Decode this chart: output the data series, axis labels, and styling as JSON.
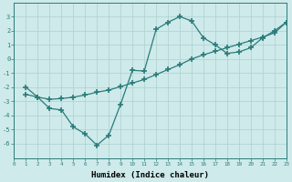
{
  "x": [
    1,
    2,
    3,
    4,
    5,
    6,
    7,
    8,
    9,
    10,
    11,
    12,
    13,
    14,
    15,
    16,
    17,
    18,
    19,
    20,
    21,
    22,
    23
  ],
  "y_wavy": [
    -2.0,
    -2.7,
    -3.5,
    -3.6,
    -4.8,
    -5.3,
    -6.1,
    -5.4,
    -3.2,
    -0.8,
    -0.85,
    2.1,
    2.6,
    3.0,
    2.7,
    1.5,
    1.0,
    0.4,
    0.5,
    0.8,
    1.5,
    2.0,
    2.6
  ],
  "y_straight": [
    -2.5,
    -2.7,
    -2.85,
    -2.8,
    -2.7,
    -2.55,
    -2.35,
    -2.2,
    -1.95,
    -1.7,
    -1.45,
    -1.1,
    -0.75,
    -0.4,
    0.0,
    0.3,
    0.55,
    0.8,
    1.05,
    1.3,
    1.55,
    1.85,
    2.6
  ],
  "line_color": "#2b7b7b",
  "bg_color": "#ceeaea",
  "grid_color": "#aed0d0",
  "xlabel": "Humidex (Indice chaleur)",
  "xlabel_fontsize": 6.5,
  "ylim": [
    -7,
    4
  ],
  "xlim": [
    0,
    23
  ],
  "yticks": [
    -6,
    -5,
    -4,
    -3,
    -2,
    -1,
    0,
    1,
    2,
    3
  ],
  "xticks": [
    0,
    1,
    2,
    3,
    4,
    5,
    6,
    7,
    8,
    9,
    10,
    11,
    12,
    13,
    14,
    15,
    16,
    17,
    18,
    19,
    20,
    21,
    22,
    23
  ],
  "marker": "+",
  "marker_size": 4,
  "linewidth": 0.9
}
